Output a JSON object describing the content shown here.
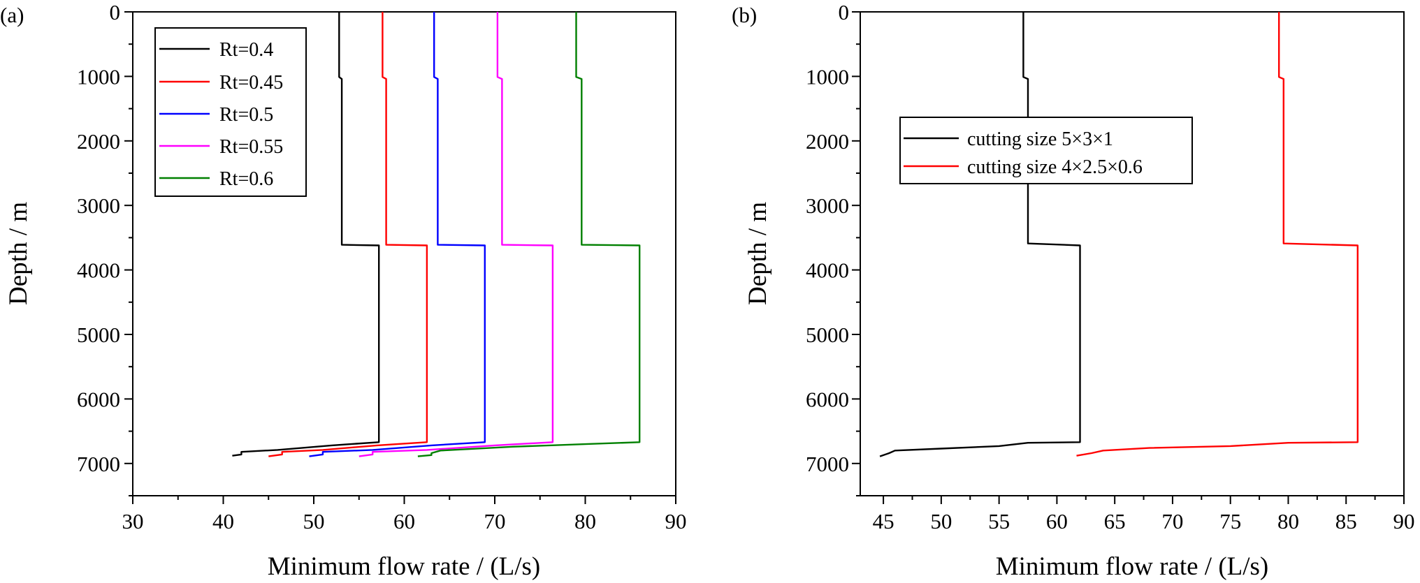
{
  "chart_data": [
    {
      "type": "line",
      "panel_label": "(a)",
      "xlabel": "Minimum flow rate / (L/s)",
      "ylabel": "Depth / m",
      "xlim": [
        30,
        90
      ],
      "ylim": [
        0,
        7500
      ],
      "y_inverted": true,
      "xticks": [
        "30",
        "40",
        "50",
        "60",
        "70",
        "80",
        "90"
      ],
      "yticks": [
        "0",
        "1000",
        "2000",
        "3000",
        "4000",
        "5000",
        "6000",
        "7000"
      ],
      "legend_position": "top-left",
      "series": [
        {
          "name": "Rt=0.4",
          "color": "#000000",
          "points": [
            [
              52.8,
              0
            ],
            [
              52.8,
              1010
            ],
            [
              53.1,
              1040
            ],
            [
              53.1,
              3610
            ],
            [
              57.2,
              3620
            ],
            [
              57.2,
              6670
            ],
            [
              52.0,
              6720
            ],
            [
              46.0,
              6790
            ],
            [
              42.0,
              6820
            ],
            [
              42.0,
              6860
            ],
            [
              41.0,
              6880
            ]
          ]
        },
        {
          "name": "Rt=0.45",
          "color": "#ff0000",
          "points": [
            [
              57.6,
              0
            ],
            [
              57.6,
              1010
            ],
            [
              58.0,
              1040
            ],
            [
              58.0,
              3610
            ],
            [
              62.5,
              3620
            ],
            [
              62.5,
              6670
            ],
            [
              57.0,
              6720
            ],
            [
              51.0,
              6790
            ],
            [
              46.5,
              6820
            ],
            [
              46.5,
              6860
            ],
            [
              45.0,
              6890
            ]
          ]
        },
        {
          "name": "Rt=0.5",
          "color": "#0000ff",
          "points": [
            [
              63.3,
              0
            ],
            [
              63.3,
              1010
            ],
            [
              63.7,
              1040
            ],
            [
              63.7,
              3610
            ],
            [
              68.9,
              3620
            ],
            [
              68.9,
              6670
            ],
            [
              63.0,
              6720
            ],
            [
              56.5,
              6790
            ],
            [
              51.0,
              6820
            ],
            [
              51.0,
              6860
            ],
            [
              49.5,
              6890
            ]
          ]
        },
        {
          "name": "Rt=0.55",
          "color": "#ff00ff",
          "points": [
            [
              70.3,
              0
            ],
            [
              70.3,
              1010
            ],
            [
              70.8,
              1040
            ],
            [
              70.8,
              3610
            ],
            [
              76.4,
              3620
            ],
            [
              76.4,
              6670
            ],
            [
              70.0,
              6720
            ],
            [
              62.5,
              6790
            ],
            [
              56.5,
              6820
            ],
            [
              56.5,
              6860
            ],
            [
              55.0,
              6890
            ]
          ]
        },
        {
          "name": "Rt=0.6",
          "color": "#008000",
          "points": [
            [
              79.0,
              0
            ],
            [
              79.0,
              1010
            ],
            [
              79.6,
              1040
            ],
            [
              79.6,
              3610
            ],
            [
              86.0,
              3620
            ],
            [
              86.0,
              6670
            ],
            [
              80.0,
              6700
            ],
            [
              72.0,
              6740
            ],
            [
              64.0,
              6800
            ],
            [
              63.0,
              6840
            ],
            [
              63.0,
              6870
            ],
            [
              61.5,
              6890
            ]
          ]
        }
      ]
    },
    {
      "type": "line",
      "panel_label": "(b)",
      "xlabel": "Minimum flow rate / (L/s)",
      "ylabel": "Depth / m",
      "xlim": [
        43,
        90
      ],
      "ylim": [
        0,
        7500
      ],
      "y_inverted": true,
      "xticks": [
        "45",
        "50",
        "55",
        "60",
        "65",
        "70",
        "75",
        "80",
        "85",
        "90"
      ],
      "yticks": [
        "0",
        "1000",
        "2000",
        "3000",
        "4000",
        "5000",
        "6000",
        "7000"
      ],
      "legend_position": "upper-left",
      "series": [
        {
          "name": "cutting size 5×3×1",
          "color": "#000000",
          "points": [
            [
              57.1,
              0
            ],
            [
              57.1,
              1010
            ],
            [
              57.5,
              1040
            ],
            [
              57.5,
              3590
            ],
            [
              62.0,
              3620
            ],
            [
              62.0,
              6670
            ],
            [
              57.5,
              6680
            ],
            [
              55.0,
              6730
            ],
            [
              50.0,
              6770
            ],
            [
              46.0,
              6800
            ],
            [
              45.5,
              6840
            ],
            [
              44.7,
              6890
            ]
          ]
        },
        {
          "name": "cutting size 4×2.5×0.6",
          "color": "#ff0000",
          "points": [
            [
              79.2,
              0
            ],
            [
              79.2,
              1010
            ],
            [
              79.6,
              1040
            ],
            [
              79.6,
              3590
            ],
            [
              86.0,
              3620
            ],
            [
              86.0,
              6670
            ],
            [
              80.0,
              6680
            ],
            [
              75.0,
              6730
            ],
            [
              68.0,
              6760
            ],
            [
              64.0,
              6800
            ],
            [
              63.0,
              6840
            ],
            [
              61.7,
              6880
            ]
          ]
        }
      ]
    }
  ]
}
